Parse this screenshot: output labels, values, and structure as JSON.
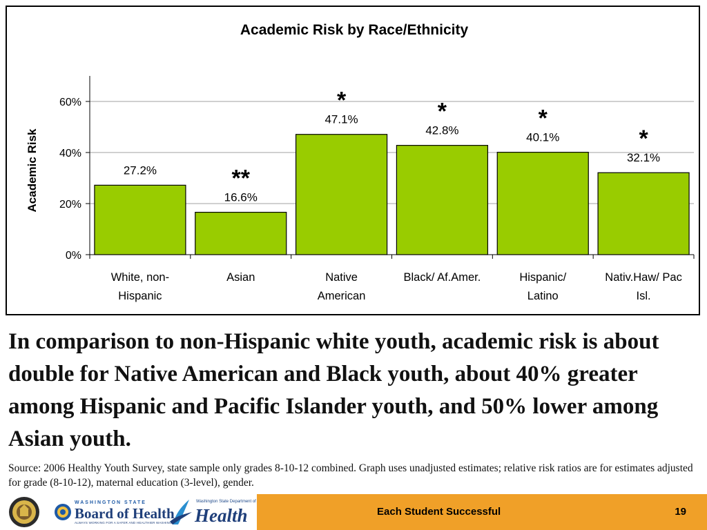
{
  "chart_data": {
    "type": "bar",
    "title": "Academic Risk by Race/Ethnicity",
    "ylabel": "Academic Risk",
    "xlabel": "",
    "ylim": [
      0,
      70
    ],
    "y_ticks": [
      0,
      20,
      40,
      60
    ],
    "y_tick_labels": [
      "0%",
      "20%",
      "40%",
      "60%"
    ],
    "grid": true,
    "bar_color": "#99cc00",
    "bars": [
      {
        "label_lines": [
          "White, non-",
          "Hispanic"
        ],
        "value": 27.2,
        "value_label": "27.2%",
        "marker": ""
      },
      {
        "label_lines": [
          "Asian",
          ""
        ],
        "value": 16.6,
        "value_label": "16.6%",
        "marker": "**"
      },
      {
        "label_lines": [
          "Native",
          "American"
        ],
        "value": 47.1,
        "value_label": "47.1%",
        "marker": "*"
      },
      {
        "label_lines": [
          "Black/ Af.Amer.",
          ""
        ],
        "value": 42.8,
        "value_label": "42.8%",
        "marker": "*"
      },
      {
        "label_lines": [
          "Hispanic/",
          "Latino"
        ],
        "value": 40.1,
        "value_label": "40.1%",
        "marker": "*"
      },
      {
        "label_lines": [
          "Nativ.Haw/ Pac",
          "Isl."
        ],
        "value": 32.1,
        "value_label": "32.1%",
        "marker": "*"
      }
    ]
  },
  "headline": "In comparison to non-Hispanic white youth, academic risk is about double for Native American and Black youth, about 40% greater among Hispanic and Pacific Islander youth, and 50% lower among Asian youth.",
  "source_note": "Source: 2006 Healthy Youth Survey, state sample only grades 8-10-12 combined. Graph uses unadjusted estimates; relative risk ratios are for estimates adjusted for grade (8-10-12), maternal education (3-level), gender.",
  "footer": {
    "tagline": "Each Student Successful",
    "slide_number": "19",
    "background_color": "#f0a028",
    "logos": {
      "board_of_health_top": "WASHINGTON STATE",
      "board_of_health_name": "Board of Health",
      "board_of_health_sub": "ALWAYS WORKING FOR A SAFER AND HEALTHIER WASHINGTON",
      "doh_top": "Washington State Department of",
      "doh_name": "Health"
    }
  }
}
